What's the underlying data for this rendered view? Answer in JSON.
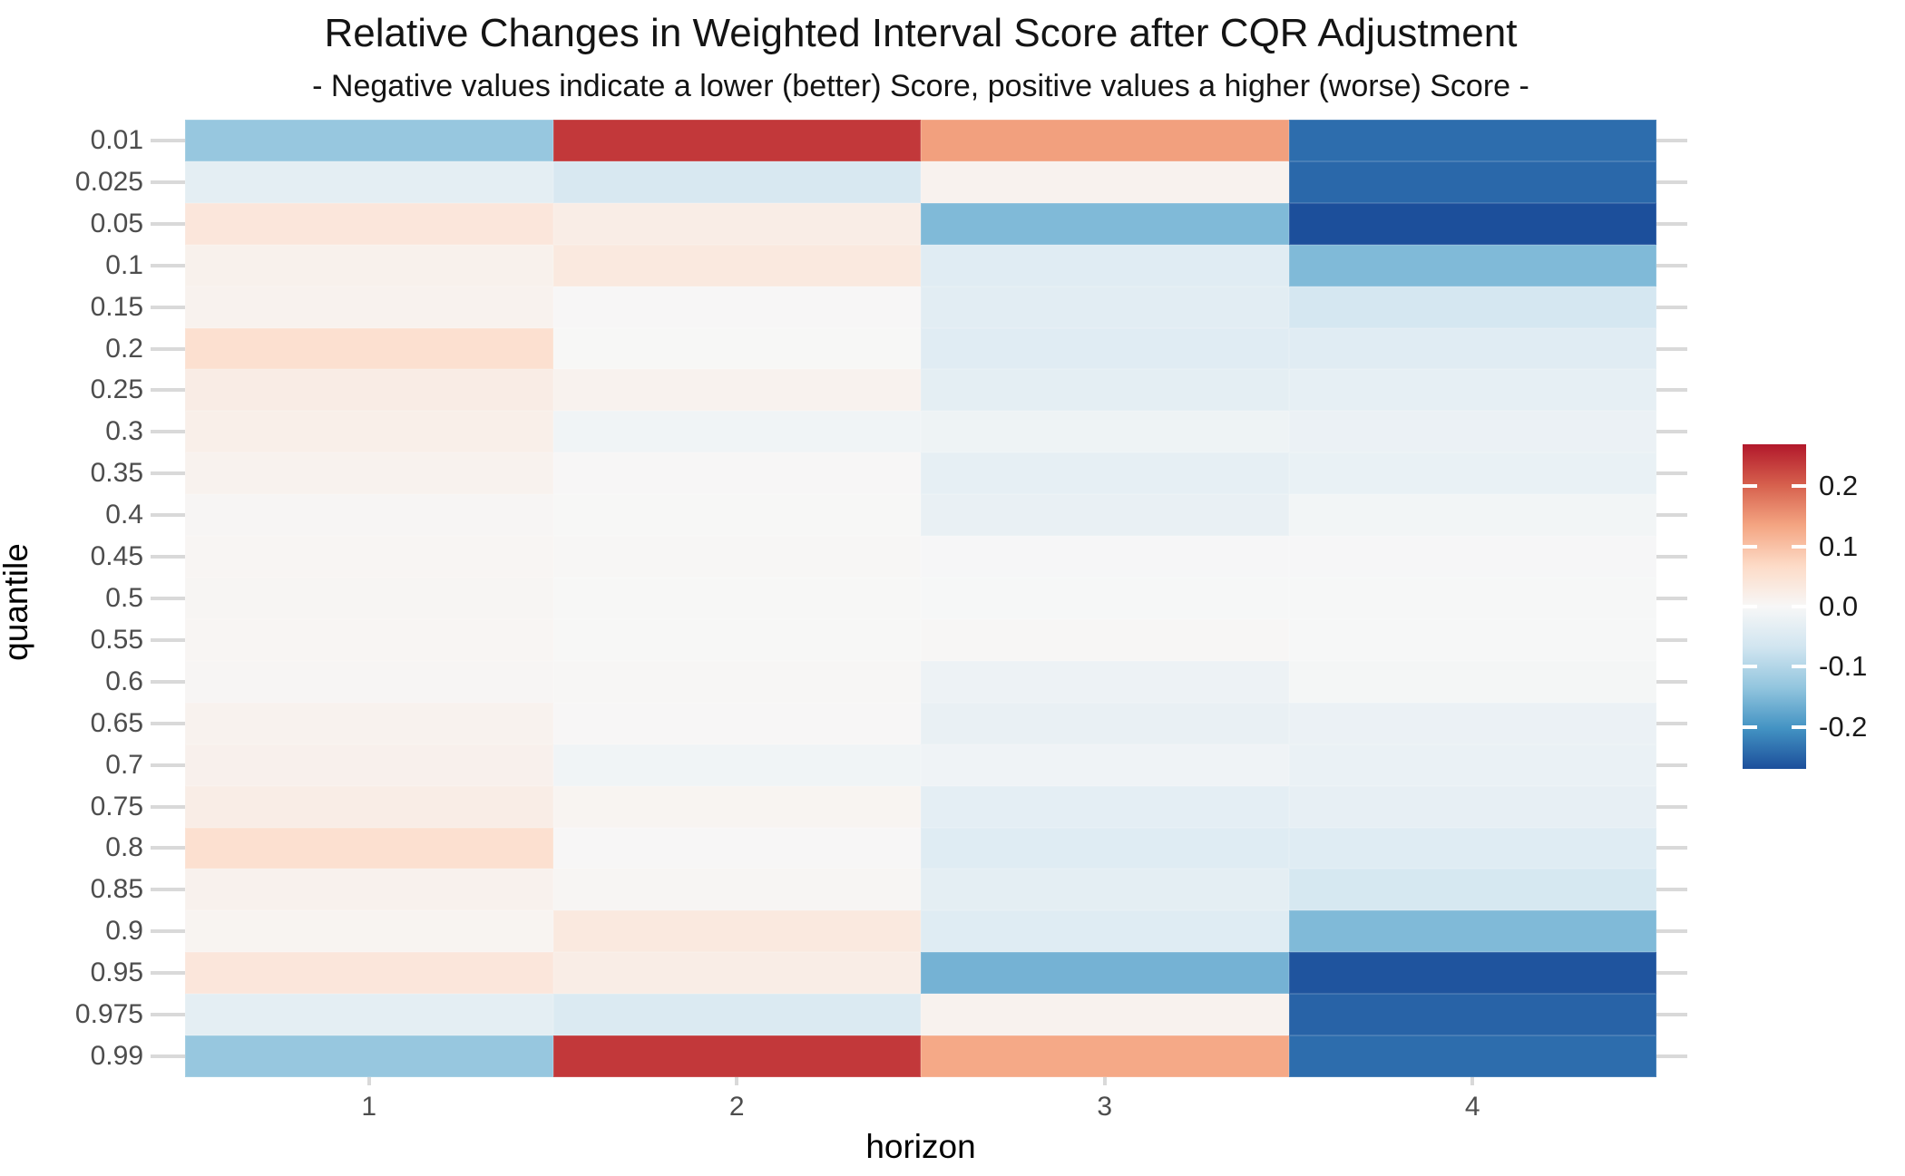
{
  "title": "Relative Changes in Weighted Interval Score after CQR Adjustment",
  "subtitle": "- Negative values indicate a lower (better) Score, positive values a higher (worse) Score -",
  "chart_data": {
    "type": "heatmap",
    "xlabel": "horizon",
    "ylabel": "quantile",
    "x_categories": [
      "1",
      "2",
      "3",
      "4"
    ],
    "y_categories": [
      "0.01",
      "0.025",
      "0.05",
      "0.1",
      "0.15",
      "0.2",
      "0.25",
      "0.3",
      "0.35",
      "0.4",
      "0.45",
      "0.5",
      "0.55",
      "0.6",
      "0.65",
      "0.7",
      "0.75",
      "0.8",
      "0.85",
      "0.9",
      "0.95",
      "0.975",
      "0.99"
    ],
    "values": [
      [
        -0.13,
        0.24,
        0.14,
        -0.24
      ],
      [
        -0.034,
        -0.055,
        0.012,
        -0.245
      ],
      [
        0.04,
        0.024,
        -0.15,
        -0.27
      ],
      [
        0.015,
        0.034,
        -0.04,
        -0.15
      ],
      [
        0.012,
        0.002,
        -0.037,
        -0.06
      ],
      [
        0.055,
        0.001,
        -0.04,
        -0.04
      ],
      [
        0.026,
        0.012,
        -0.034,
        -0.03
      ],
      [
        0.02,
        -0.012,
        -0.016,
        -0.022
      ],
      [
        0.013,
        0.002,
        -0.03,
        -0.024
      ],
      [
        0.004,
        0.001,
        -0.025,
        -0.008
      ],
      [
        0.006,
        0.003,
        -0.002,
        -0.002
      ],
      [
        0.005,
        0.001,
        -0.001,
        -0.001
      ],
      [
        0.006,
        0.001,
        0.003,
        -0.001
      ],
      [
        0.004,
        0.003,
        -0.017,
        -0.005
      ],
      [
        0.012,
        0.002,
        -0.025,
        -0.021
      ],
      [
        0.016,
        -0.012,
        -0.014,
        -0.023
      ],
      [
        0.024,
        0.008,
        -0.033,
        -0.029
      ],
      [
        0.055,
        0.002,
        -0.042,
        -0.043
      ],
      [
        0.014,
        0.005,
        -0.034,
        -0.058
      ],
      [
        0.008,
        0.034,
        -0.042,
        -0.15
      ],
      [
        0.04,
        0.024,
        -0.16,
        -0.265
      ],
      [
        -0.034,
        -0.05,
        0.012,
        -0.25
      ],
      [
        -0.13,
        0.24,
        0.13,
        -0.24
      ]
    ],
    "colorbar": {
      "tick_labels": [
        "0.2",
        "0.1",
        "0.0",
        "-0.1",
        "-0.2"
      ],
      "tick_values": [
        0.2,
        0.1,
        0.0,
        -0.1,
        -0.2
      ],
      "domain": [
        -0.27,
        0.27
      ],
      "palette": [
        {
          "value": 0.27,
          "color": "#b2182b"
        },
        {
          "value": 0.2025,
          "color": "#d6604d"
        },
        {
          "value": 0.135,
          "color": "#f4a582"
        },
        {
          "value": 0.0675,
          "color": "#fddbc7"
        },
        {
          "value": 0.0,
          "color": "#f7f7f7"
        },
        {
          "value": -0.0675,
          "color": "#d1e5f0"
        },
        {
          "value": -0.135,
          "color": "#92c5de"
        },
        {
          "value": -0.2025,
          "color": "#4393c3"
        },
        {
          "value": -0.27,
          "color": "#1c4f9b"
        }
      ],
      "position": "right"
    },
    "grid": "stub gridlines outside tile area",
    "legend_position": "right"
  },
  "colors": {
    "background": "#ffffff",
    "axis_text": "#4d4d4d",
    "title_text": "#141414",
    "axis_title_text": "#000000",
    "grid_stub": "#d9d9d9",
    "colorbar_tick": "#ffffff"
  }
}
